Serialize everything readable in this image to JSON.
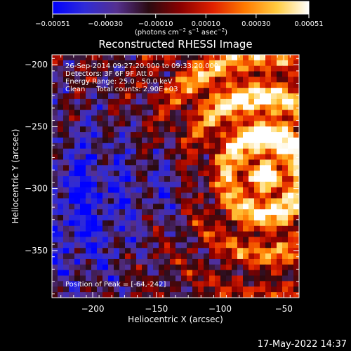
{
  "chart_data": {
    "type": "heatmap",
    "title": "Reconstructed RHESSI Image",
    "xlabel": "Heliocentric X (arcsec)",
    "ylabel": "Heliocentric Y (arcsec)",
    "xlim": [
      -232,
      -38
    ],
    "ylim": [
      -388,
      -192
    ],
    "x_ticks": [
      -200,
      -150,
      -100,
      -50
    ],
    "x_tick_labels": [
      "−200",
      "−150",
      "−100",
      "−50"
    ],
    "y_ticks": [
      -200,
      -250,
      -300,
      -350
    ],
    "y_tick_labels": [
      "−200",
      "−250",
      "−300",
      "−350"
    ],
    "colorbar": {
      "min": -0.00051,
      "max": 0.00051,
      "ticks": [
        -0.00051,
        -0.0003,
        -0.0001,
        0.0001,
        0.0003,
        0.00051
      ],
      "tick_labels": [
        "−0.00051",
        "−0.00030",
        "−0.00010",
        "0.00010",
        "0.00030",
        "0.00051"
      ],
      "unit_parts": [
        "(photons cm",
        "−2",
        " s",
        "−1",
        " asec",
        "−2",
        ")"
      ],
      "stops": [
        "#0000ff",
        "#2f2bd8",
        "#55308f",
        "#2a0a10",
        "#8b0000",
        "#e02000",
        "#ff7a00",
        "#ffcc40",
        "#ffffff"
      ]
    },
    "annotations": [
      "26-Sep-2014 09:27:20.000 to 09:33:20.000",
      "Detectors: 3F 6F 9F  Att 0",
      "Energy Range: 25.0 - 50.0 keV",
      "Clean     Total counts: 2.90E+03"
    ],
    "peak_label": "Position of Peak = [-64,-242]",
    "peak": [
      -64,
      -242
    ],
    "grid": false
  },
  "footer": {
    "timestamp": "17-May-2022 14:37"
  }
}
